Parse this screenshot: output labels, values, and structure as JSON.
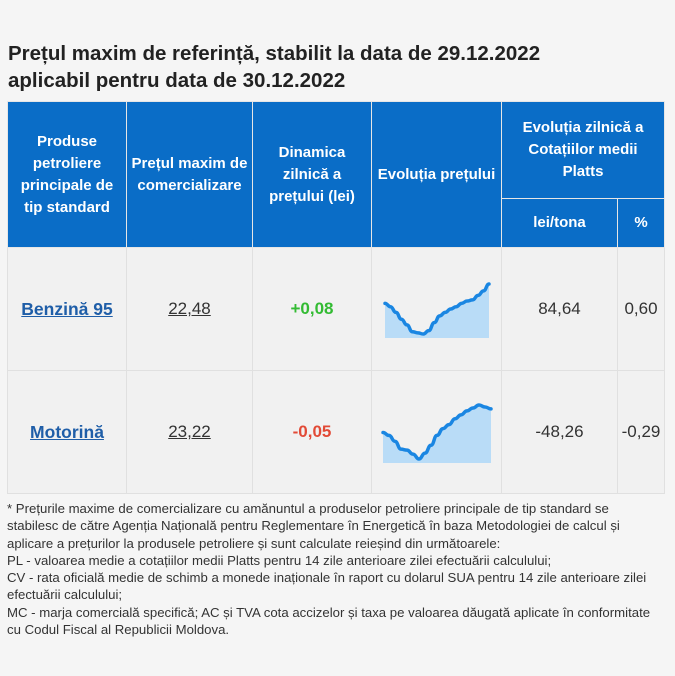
{
  "title": {
    "line1": "Prețul maxim de referință, stabilit la data de 29.12.2022",
    "line2": "aplicabil pentru data de 30.12.2022"
  },
  "headers": {
    "products": "Produse petroliere principale de tip standard",
    "max_price": "Prețul maxim de comercializare",
    "dynamics": "Dinamica zilnică a prețului (lei)",
    "evolution": "Evoluția prețului",
    "platts": "Evoluția zilnică a Cotațiilor medii Platts",
    "lei_tona": "lei/tona",
    "percent": "%"
  },
  "rows": [
    {
      "product": "Benzină 95",
      "price": "22,48",
      "change": "+0,08",
      "platts_lei": "84,64",
      "platts_pct": "0,60",
      "trend": [
        2.9,
        2.6,
        2.1,
        1.5,
        1.0,
        0.4,
        0.3,
        0.2,
        0.5,
        1.2,
        1.8,
        2.1,
        2.4,
        2.6,
        2.9,
        3.1,
        3.2,
        3.6,
        4.0,
        4.6
      ]
    },
    {
      "product": "Motorină",
      "price": "23,22",
      "change": "-0,05",
      "platts_lei": "-48,26",
      "platts_pct": "-0,29",
      "trend": [
        2.7,
        2.4,
        1.8,
        1.0,
        0.9,
        0.5,
        0.0,
        0.6,
        1.4,
        2.4,
        3.1,
        3.5,
        4.1,
        4.5,
        4.9,
        5.2,
        5.5,
        5.3,
        5.1
      ]
    }
  ],
  "footnote": [
    "* Prețurile maxime de comercializare cu amănuntul a produselor petroliere principale de tip standard se stabilesc de către Agenția Națională pentru Reglementare în Energetică în baza Metodologiei de calcul și aplicare a prețurilor la produsele petroliere și sunt calculate reieșind din următoarele:",
    "PL - valoarea medie a cotațiilor medii Platts pentru 14 zile anterioare zilei efectuării calculului;",
    "CV - rata oficială medie de schimb a monede inaționale în raport cu dolarul SUA pentru 14 zile anterioare zilei efectuării calculului;",
    "MC - marja comercială specifică; AC și TVA cota accizelor și taxa pe valoarea dăugată aplicate în conformitate cu Codul Fiscal al Republicii Moldova."
  ],
  "colors": {
    "header_bg": "#0a6dc7",
    "positive": "#33bb33",
    "negative": "#e24a36",
    "link": "#1f5ea8",
    "spark_line": "#1a86e2",
    "spark_fill": "#b9dcf7"
  }
}
